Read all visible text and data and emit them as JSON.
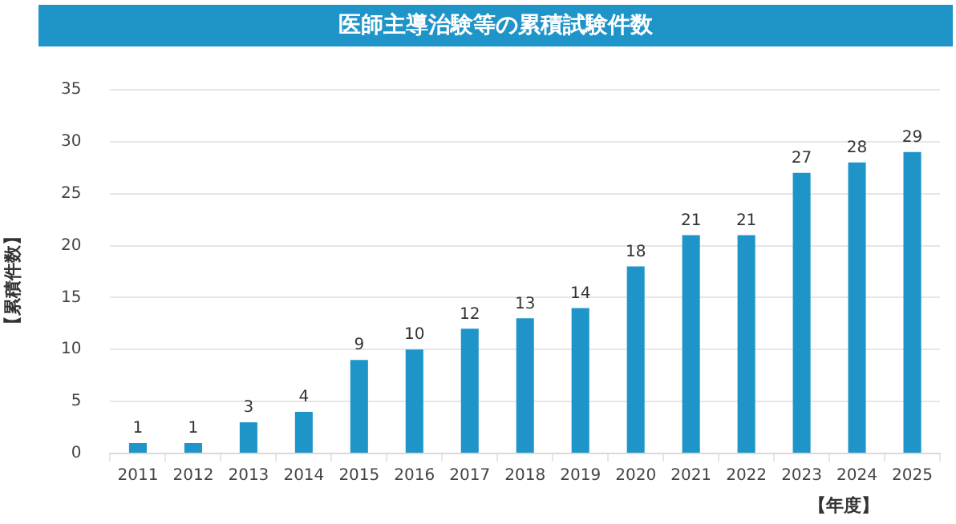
{
  "chart_data": {
    "type": "bar",
    "title": "医師主導治験等の累積試験件数",
    "xlabel": "【年度】",
    "ylabel": "【累積件数】",
    "categories": [
      "2011",
      "2012",
      "2013",
      "2014",
      "2015",
      "2016",
      "2017",
      "2018",
      "2019",
      "2020",
      "2021",
      "2022",
      "2023",
      "2024",
      "2025"
    ],
    "values": [
      1,
      1,
      3,
      4,
      9,
      10,
      12,
      13,
      14,
      18,
      21,
      21,
      27,
      28,
      29
    ],
    "color": "#1f94c8",
    "ylim": [
      0,
      35
    ],
    "yticks": [
      0,
      5,
      10,
      15,
      20,
      25,
      30,
      35
    ],
    "grid": "y",
    "data_labels": true,
    "legend": false
  }
}
